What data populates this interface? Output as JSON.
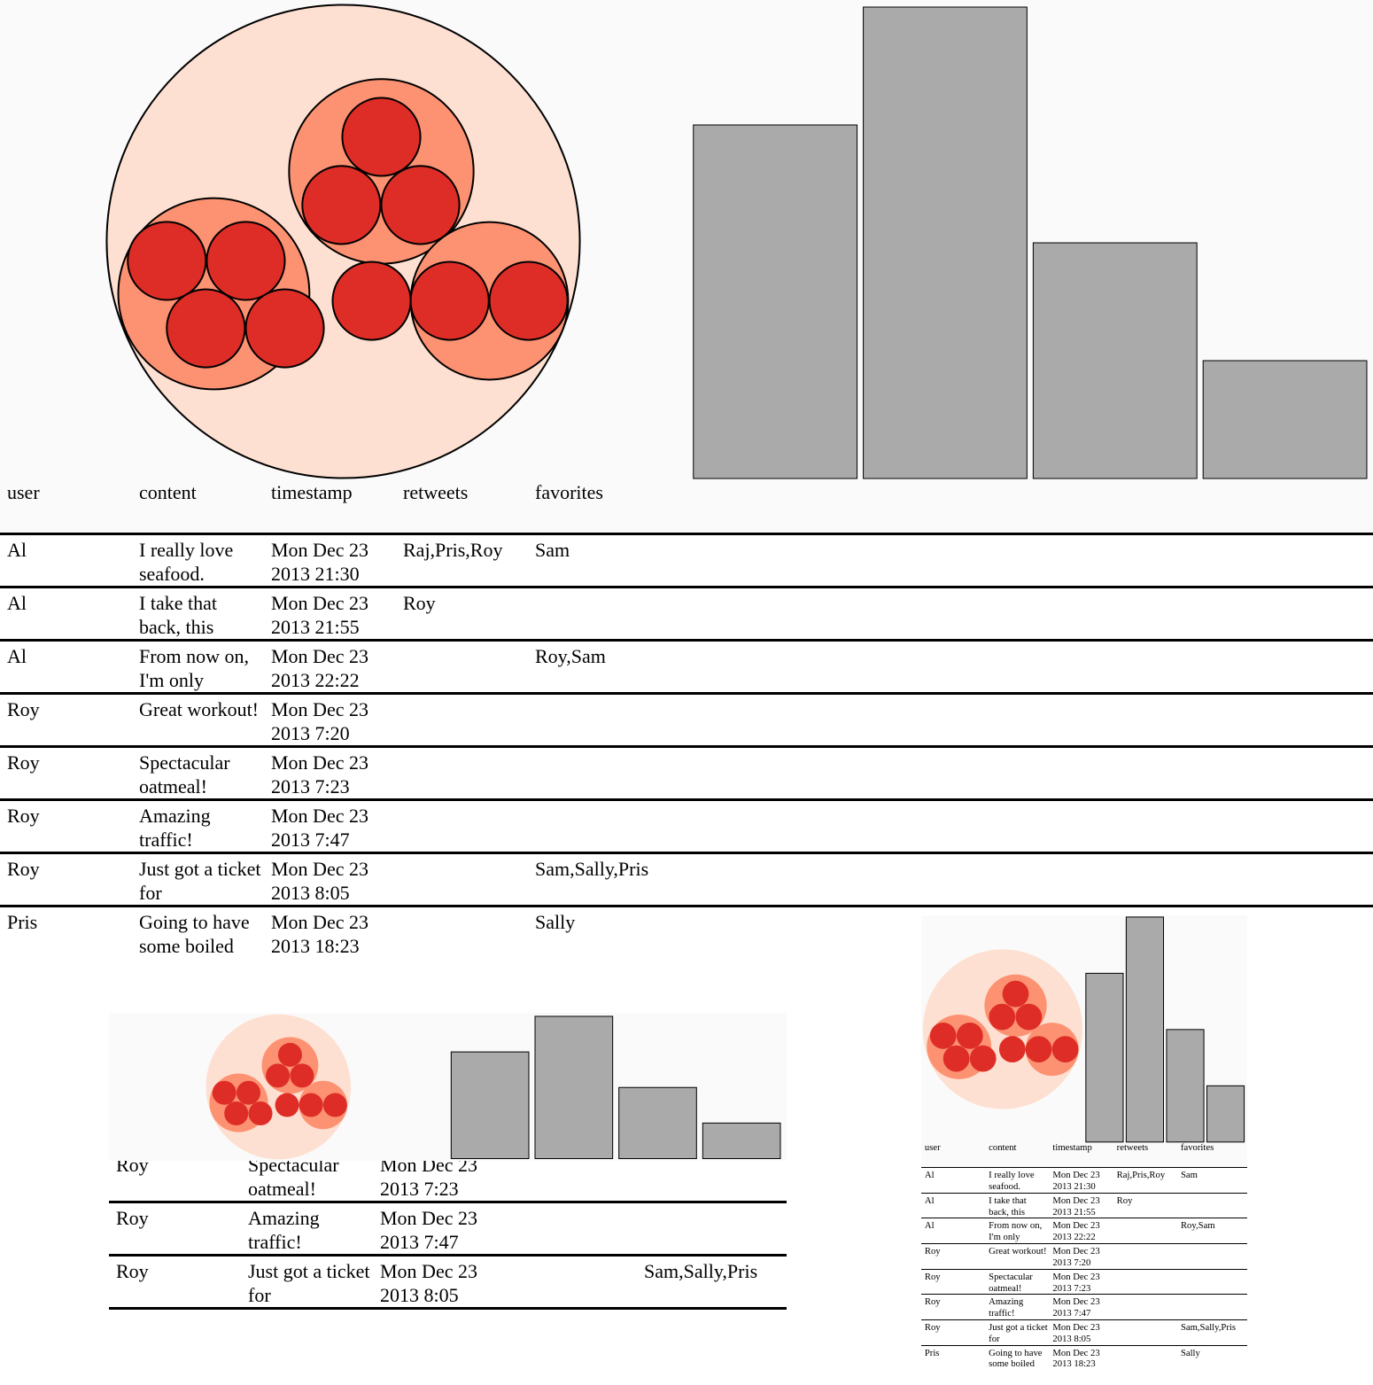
{
  "circle_groups": [
    4,
    3,
    2,
    1
  ],
  "bar_values": [
    3,
    4,
    2,
    1
  ],
  "table": {
    "columns": [
      "user",
      "content",
      "timestamp",
      "retweets",
      "favorites"
    ],
    "rows": [
      [
        "Al",
        "I really love seafood.",
        "Mon Dec 23 2013 21:30",
        "Raj,Pris,Roy",
        "Sam"
      ],
      [
        "Al",
        "I take that back, this",
        "Mon Dec 23 2013 21:55",
        "Roy",
        null
      ],
      [
        "Al",
        "From now on, I'm only",
        "Mon Dec 23 2013 22:22",
        null,
        "Roy,Sam"
      ],
      [
        "Roy",
        "Great workout!",
        "Mon Dec 23 2013 7:20",
        null,
        null
      ],
      [
        "Roy",
        "Spectacular oatmeal!",
        "Mon Dec 23 2013 7:23",
        null,
        null
      ],
      [
        "Roy",
        "Amazing traffic!",
        "Mon Dec 23 2013 7:47",
        null,
        null
      ],
      [
        "Roy",
        "Just got a ticket for",
        "Mon Dec 23 2013 8:05",
        null,
        "Sam,Sally,Pris"
      ],
      [
        "Pris",
        "Going to have some boiled",
        "Mon Dec 23 2013 18:23",
        null,
        "Sally"
      ]
    ]
  }
}
